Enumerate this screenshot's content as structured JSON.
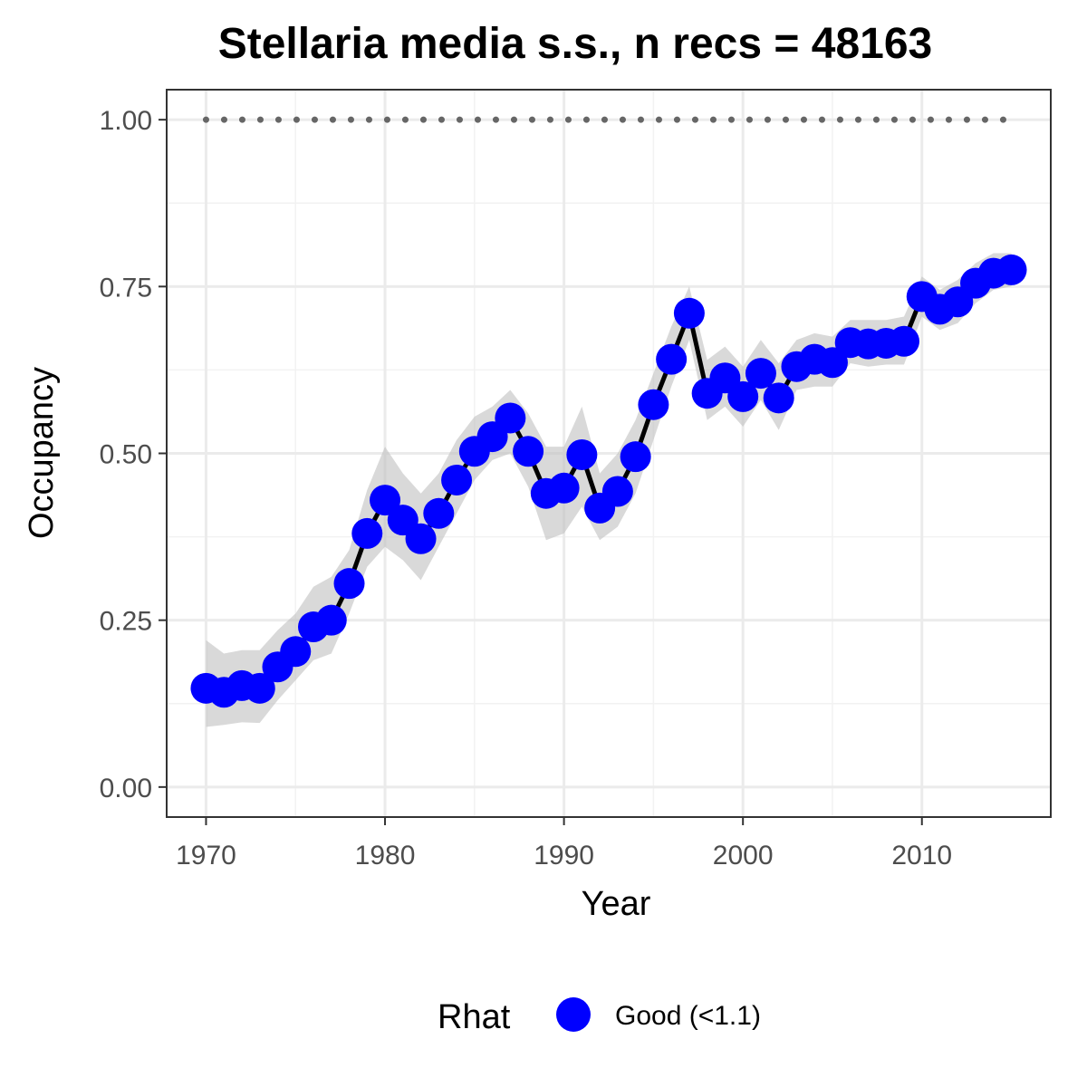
{
  "chart_data": {
    "type": "line",
    "title": "Stellaria media s.s., n recs = 48163",
    "xlabel": "Year",
    "ylabel": "Occupancy",
    "xlim": [
      1967.8,
      2017.2
    ],
    "ylim": [
      -0.045,
      1.045
    ],
    "x_ticks": [
      1970,
      1980,
      1990,
      2000,
      2010
    ],
    "x_tick_labels": [
      "1970",
      "1980",
      "1990",
      "2000",
      "2010"
    ],
    "y_ticks": [
      0,
      0.25,
      0.5,
      0.75,
      1.0
    ],
    "y_tick_labels": [
      "0.00",
      "0.25",
      "0.50",
      "0.75",
      "1.00"
    ],
    "grid": true,
    "legend": {
      "title": "Rhat",
      "position": "bottom",
      "entries": [
        {
          "label": "Good (<1.1)",
          "color": "#0000ff"
        }
      ]
    },
    "reference_line": {
      "y": 1.0,
      "style": "dotted",
      "color": "#666666"
    },
    "series": [
      {
        "x": [
          1970,
          1971,
          1972,
          1973,
          1974,
          1975,
          1976,
          1977,
          1978,
          1979,
          1980,
          1981,
          1982,
          1983,
          1984,
          1985,
          1986,
          1987,
          1988,
          1989,
          1990,
          1991,
          1992,
          1993,
          1994,
          1995,
          1996,
          1997,
          1998,
          1999,
          2000,
          2001,
          2002,
          2003,
          2004,
          2005,
          2006,
          2007,
          2008,
          2009,
          2010,
          2011,
          2012,
          2013,
          2014,
          2015
        ],
        "values": [
          0.148,
          0.142,
          0.152,
          0.148,
          0.18,
          0.203,
          0.24,
          0.25,
          0.305,
          0.38,
          0.43,
          0.4,
          0.372,
          0.41,
          0.46,
          0.503,
          0.525,
          0.553,
          0.503,
          0.44,
          0.448,
          0.498,
          0.418,
          0.443,
          0.495,
          0.573,
          0.641,
          0.71,
          0.59,
          0.613,
          0.585,
          0.62,
          0.583,
          0.63,
          0.641,
          0.636,
          0.666,
          0.664,
          0.665,
          0.668,
          0.735,
          0.716,
          0.727,
          0.755,
          0.77,
          0.775
        ],
        "lower": [
          0.09,
          0.093,
          0.097,
          0.096,
          0.13,
          0.16,
          0.19,
          0.2,
          0.26,
          0.33,
          0.36,
          0.34,
          0.31,
          0.36,
          0.41,
          0.46,
          0.49,
          0.5,
          0.45,
          0.37,
          0.38,
          0.42,
          0.37,
          0.39,
          0.44,
          0.52,
          0.6,
          0.67,
          0.55,
          0.57,
          0.54,
          0.58,
          0.535,
          0.595,
          0.6,
          0.6,
          0.635,
          0.63,
          0.633,
          0.633,
          0.705,
          0.685,
          0.695,
          0.725,
          0.745,
          0.75
        ],
        "upper": [
          0.22,
          0.2,
          0.205,
          0.205,
          0.235,
          0.26,
          0.3,
          0.315,
          0.355,
          0.445,
          0.51,
          0.47,
          0.44,
          0.47,
          0.52,
          0.555,
          0.57,
          0.595,
          0.56,
          0.51,
          0.51,
          0.57,
          0.47,
          0.5,
          0.55,
          0.62,
          0.69,
          0.75,
          0.64,
          0.66,
          0.63,
          0.67,
          0.635,
          0.67,
          0.68,
          0.675,
          0.7,
          0.7,
          0.7,
          0.705,
          0.765,
          0.745,
          0.76,
          0.785,
          0.8,
          0.8
        ],
        "line_color": "#000000",
        "point_color": "#0000ff",
        "band_color": "#bfbfbf"
      }
    ]
  }
}
